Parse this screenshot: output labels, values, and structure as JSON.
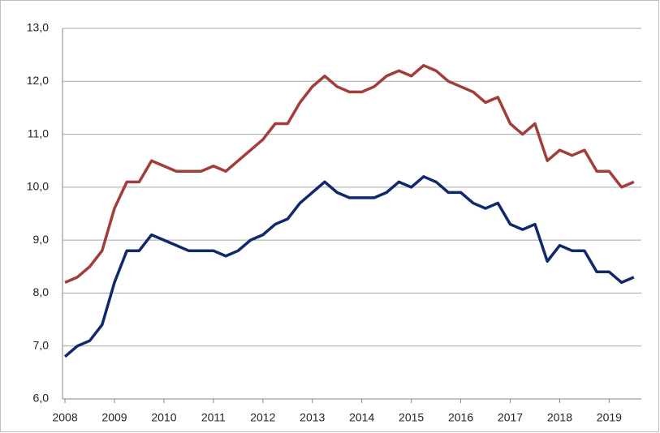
{
  "chart_data": {
    "type": "line",
    "x": [
      2008,
      2008.25,
      2008.5,
      2008.75,
      2009,
      2009.25,
      2009.5,
      2009.75,
      2010,
      2010.25,
      2010.5,
      2010.75,
      2011,
      2011.25,
      2011.5,
      2011.75,
      2012,
      2012.25,
      2012.5,
      2012.75,
      2013,
      2013.25,
      2013.5,
      2013.75,
      2014,
      2014.25,
      2014.5,
      2014.75,
      2015,
      2015.25,
      2015.5,
      2015.75,
      2016,
      2016.25,
      2016.5,
      2016.75,
      2017,
      2017.25,
      2017.5,
      2017.75,
      2018,
      2018.25,
      2018.5,
      2018.75,
      2019,
      2019.25,
      2019.5
    ],
    "series": [
      {
        "color": "#a33d3a",
        "values": [
          8.2,
          8.3,
          8.5,
          8.8,
          9.6,
          10.1,
          10.1,
          10.5,
          10.4,
          10.3,
          10.3,
          10.3,
          10.4,
          10.3,
          10.5,
          10.7,
          10.9,
          11.2,
          11.2,
          11.6,
          11.9,
          12.1,
          11.9,
          11.8,
          11.8,
          11.9,
          12.1,
          12.2,
          12.1,
          12.3,
          12.2,
          12.0,
          11.9,
          11.8,
          11.6,
          11.7,
          11.2,
          11.0,
          11.2,
          10.5,
          10.7,
          10.6,
          10.7,
          10.3,
          10.3,
          10.0,
          10.1
        ]
      },
      {
        "color": "#10296d",
        "values": [
          6.8,
          7.0,
          7.1,
          7.4,
          8.2,
          8.8,
          8.8,
          9.1,
          9.0,
          8.9,
          8.8,
          8.8,
          8.8,
          8.7,
          8.8,
          9.0,
          9.1,
          9.3,
          9.4,
          9.7,
          9.9,
          10.1,
          9.9,
          9.8,
          9.8,
          9.8,
          9.9,
          10.1,
          10.0,
          10.2,
          10.1,
          9.9,
          9.9,
          9.7,
          9.6,
          9.7,
          9.3,
          9.2,
          9.3,
          8.6,
          8.9,
          8.8,
          8.8,
          8.4,
          8.4,
          8.2,
          8.3
        ]
      }
    ],
    "xlim": [
      2007.95,
      2019.65
    ],
    "xticks": [
      2008,
      2009,
      2010,
      2011,
      2012,
      2013,
      2014,
      2015,
      2016,
      2017,
      2018,
      2019
    ],
    "ylim": [
      6,
      13
    ],
    "yticks": [
      {
        "value": 6,
        "label": "6,0"
      },
      {
        "value": 7,
        "label": "7,0"
      },
      {
        "value": 8,
        "label": "8,0"
      },
      {
        "value": 9,
        "label": "9,0"
      },
      {
        "value": 10,
        "label": "10,0"
      },
      {
        "value": 11,
        "label": "11,0"
      },
      {
        "value": 12,
        "label": "12,0"
      },
      {
        "value": 13,
        "label": "13,0"
      }
    ],
    "grid": true
  }
}
